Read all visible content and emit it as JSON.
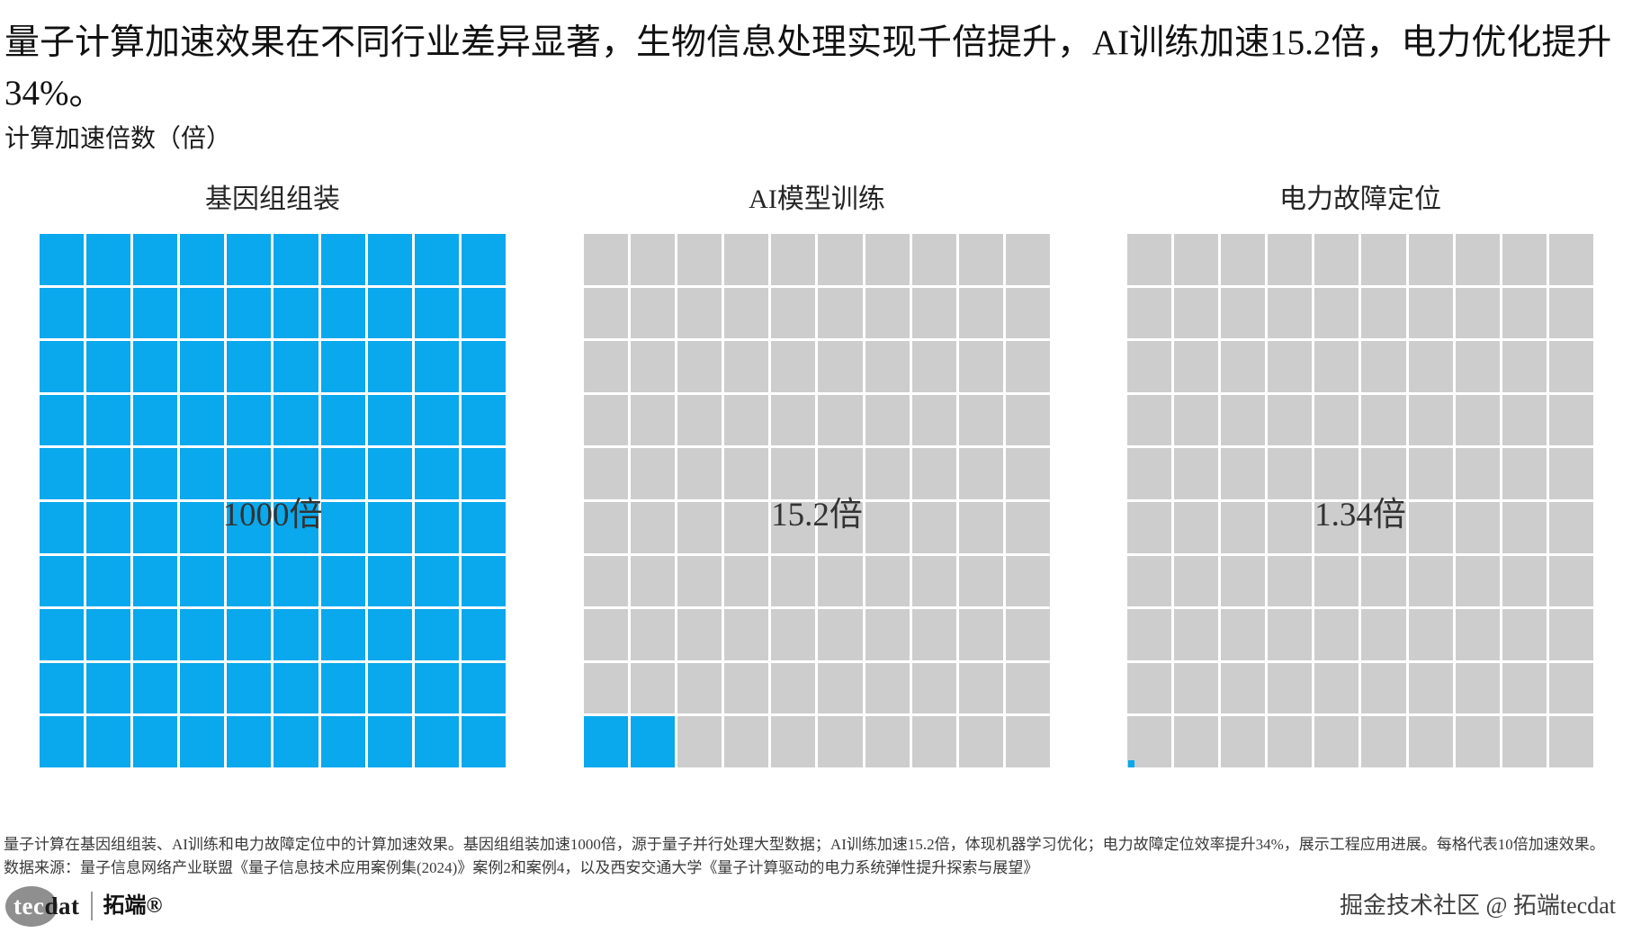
{
  "header": {
    "headline": "量子计算加速效果在不同行业差异显著，生物信息处理实现千倍提升，AI训练加速15.2倍，电力优化提升34%。",
    "axis_label": "计算加速倍数（倍）"
  },
  "chart_data": {
    "type": "waffle",
    "unit_per_cell": 10,
    "grid": {
      "rows": 10,
      "cols": 10
    },
    "colors": {
      "filled": "#0AA8EC",
      "empty": "#CDCDCD"
    },
    "legend_position": "none",
    "panels": [
      {
        "title": "基因组组装",
        "value": 1000,
        "value_label": "1000倍",
        "filled_cells": 100,
        "partial_fraction": 0
      },
      {
        "title": "AI模型训练",
        "value": 15.2,
        "value_label": "15.2倍",
        "filled_cells": 2,
        "partial_fraction": 0
      },
      {
        "title": "电力故障定位",
        "value": 1.34,
        "value_label": "1.34倍",
        "filled_cells": 0,
        "partial_fraction": 0.134
      }
    ]
  },
  "caption": {
    "line1": "量子计算在基因组组装、AI训练和电力故障定位中的计算加速效果。基因组组装加速1000倍，源于量子并行处理大型数据；AI训练加速15.2倍，体现机器学习优化；电力故障定位效率提升34%，展示工程应用进展。每格代表10倍加速效果。",
    "line2": "数据来源：量子信息网络产业联盟《量子信息技术应用案例集(2024)》案例2和案例4，以及西安交通大学《量子计算驱动的电力系统弹性提升探索与展望》"
  },
  "footer": {
    "logo_text_primary": "tec",
    "logo_text_secondary": "dat",
    "logo_brand": "拓端®",
    "community": "掘金技术社区 @ 拓端tecdat"
  }
}
